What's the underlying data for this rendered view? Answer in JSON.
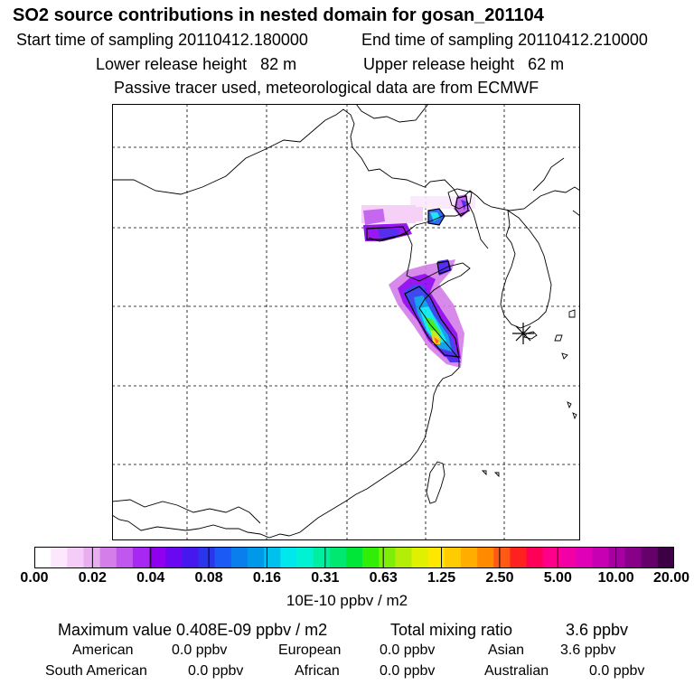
{
  "header": {
    "title": "SO2 source contributions in nested domain for gosan_201104",
    "start_label": "Start time of sampling 20110412.180000",
    "end_label": "End time of sampling 20110412.210000",
    "lower_label": "Lower release height   82 m",
    "upper_label": "Upper release height   62 m",
    "tracer_note": "Passive tracer used, meteorological data are from ECMWF"
  },
  "colorbar": {
    "colors": [
      "#ffffff",
      "#fbe8fc",
      "#f4ccf7",
      "#e9aef2",
      "#d47ee9",
      "#c057ee",
      "#a628f2",
      "#8f00f0",
      "#6a08f2",
      "#4418ef",
      "#2b36ec",
      "#1b5af5",
      "#0b7eee",
      "#0099ea",
      "#00c0ee",
      "#00e8ee",
      "#00f2d2",
      "#00eea0",
      "#00e870",
      "#00e638",
      "#30ee08",
      "#7eee08",
      "#b4ee08",
      "#e0f000",
      "#ffe800",
      "#ffcc00",
      "#ffae00",
      "#ff8a00",
      "#ff5a14",
      "#ff2020",
      "#ff0058",
      "#ff008a",
      "#f200a6",
      "#e000b8",
      "#c800b4",
      "#a600a2",
      "#880088",
      "#66006a",
      "#3e0044"
    ],
    "ticks": [
      "0.00",
      "0.02",
      "0.04",
      "0.08",
      "0.16",
      "0.31",
      "0.63",
      "1.25",
      "2.50",
      "5.00",
      "10.00",
      "20.00"
    ],
    "unit": "10E-10 ppbv / m2"
  },
  "stats": {
    "max_label": "Maximum value  0.408E-09 ppbv / m2",
    "total_label": "Total mixing ratio",
    "total_value": "3.6 ppbv",
    "american_label": "American",
    "american_value": "0.0 ppbv",
    "european_label": "European",
    "european_value": "0.0 ppbv",
    "asian_label": "Asian",
    "asian_value": "3.6 ppbv",
    "south_american_label": "South American",
    "south_american_value": "0.0 ppbv",
    "african_label": "African",
    "african_value": "0.0 ppbv",
    "australian_label": "Australian",
    "australian_value": "0.0 ppbv"
  }
}
